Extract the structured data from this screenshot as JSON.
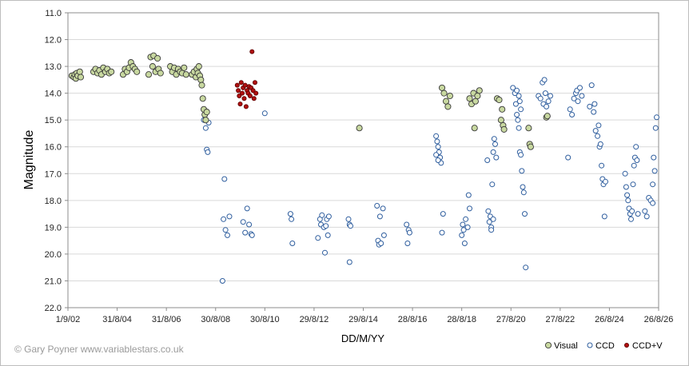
{
  "chart_data": {
    "type": "scatter",
    "title": "",
    "xlabel": "DD/M/YY",
    "ylabel": "Magnitude",
    "y_inverted": true,
    "ylim": [
      11.0,
      22.0
    ],
    "yticks": [
      "11.0",
      "12.0",
      "13.0",
      "14.0",
      "15.0",
      "16.0",
      "17.0",
      "18.0",
      "19.0",
      "20.0",
      "21.0",
      "22.0"
    ],
    "xticks": [
      "1/9/02",
      "31/8/04",
      "31/8/06",
      "30/8/08",
      "30/8/10",
      "29/8/12",
      "29/8/14",
      "28/8/16",
      "28/8/18",
      "27/8/20",
      "27/8/22",
      "26/8/24",
      "26/8/26"
    ],
    "grid": "horizontal",
    "legend_position": "bottom-right",
    "credit": "© Gary Poyner  www.variablestars.co.uk",
    "colors": {
      "Visual": "#c8d8a0",
      "CCD": "#ffffff",
      "CCD+V": "#b01010",
      "CCD_edge": "#2f5e9e",
      "Visual_edge": "#3a3a3a"
    },
    "series": [
      {
        "name": "Visual",
        "points": [
          [
            2002.2,
            13.35
          ],
          [
            2002.3,
            13.4
          ],
          [
            2002.35,
            13.3
          ],
          [
            2002.4,
            13.45
          ],
          [
            2002.45,
            13.25
          ],
          [
            2002.5,
            13.35
          ],
          [
            2002.6,
            13.2
          ],
          [
            2002.65,
            13.4
          ],
          [
            2003.3,
            13.2
          ],
          [
            2003.4,
            13.1
          ],
          [
            2003.5,
            13.25
          ],
          [
            2003.6,
            13.15
          ],
          [
            2003.7,
            13.3
          ],
          [
            2003.8,
            13.05
          ],
          [
            2003.9,
            13.2
          ],
          [
            2004.0,
            13.1
          ],
          [
            2004.1,
            13.25
          ],
          [
            2004.2,
            13.2
          ],
          [
            2004.8,
            13.3
          ],
          [
            2004.9,
            13.1
          ],
          [
            2005.0,
            13.2
          ],
          [
            2005.1,
            13.05
          ],
          [
            2005.2,
            12.85
          ],
          [
            2005.3,
            13.0
          ],
          [
            2005.4,
            13.1
          ],
          [
            2005.5,
            13.2
          ],
          [
            2006.1,
            13.3
          ],
          [
            2006.2,
            12.65
          ],
          [
            2006.3,
            13.0
          ],
          [
            2006.35,
            12.6
          ],
          [
            2006.45,
            13.2
          ],
          [
            2006.55,
            12.7
          ],
          [
            2006.6,
            13.1
          ],
          [
            2006.7,
            13.25
          ],
          [
            2007.2,
            13.0
          ],
          [
            2007.3,
            13.2
          ],
          [
            2007.4,
            13.05
          ],
          [
            2007.5,
            13.3
          ],
          [
            2007.6,
            13.1
          ],
          [
            2007.7,
            13.2
          ],
          [
            2007.8,
            13.25
          ],
          [
            2007.9,
            13.05
          ],
          [
            2008.0,
            13.3
          ],
          [
            2008.3,
            13.3
          ],
          [
            2008.4,
            13.2
          ],
          [
            2008.5,
            13.4
          ],
          [
            2008.55,
            13.1
          ],
          [
            2008.6,
            13.25
          ],
          [
            2008.65,
            13.0
          ],
          [
            2008.7,
            13.35
          ],
          [
            2008.75,
            13.5
          ],
          [
            2008.8,
            13.7
          ],
          [
            2008.85,
            14.2
          ],
          [
            2008.9,
            14.6
          ],
          [
            2008.95,
            14.8
          ],
          [
            2009.0,
            15.0
          ],
          [
            2009.05,
            14.7
          ],
          [
            2016.8,
            15.3
          ],
          [
            2021.0,
            13.8
          ],
          [
            2021.1,
            14.0
          ],
          [
            2021.2,
            14.3
          ],
          [
            2021.3,
            14.5
          ],
          [
            2021.4,
            14.1
          ],
          [
            2022.4,
            14.2
          ],
          [
            2022.5,
            14.4
          ],
          [
            2022.6,
            14.0
          ],
          [
            2022.65,
            15.3
          ],
          [
            2022.7,
            14.3
          ],
          [
            2022.8,
            14.1
          ],
          [
            2022.9,
            13.9
          ],
          [
            2023.8,
            14.2
          ],
          [
            2023.9,
            14.25
          ],
          [
            2024.0,
            15.0
          ],
          [
            2024.05,
            14.6
          ],
          [
            2024.1,
            15.2
          ],
          [
            2024.15,
            15.35
          ],
          [
            2025.4,
            15.3
          ],
          [
            2025.45,
            15.9
          ],
          [
            2025.5,
            16.0
          ],
          [
            2026.3,
            14.9
          ],
          [
            2026.35,
            14.85
          ]
        ]
      },
      {
        "name": "CCD",
        "points": [
          [
            2008.9,
            15.0
          ],
          [
            2009.0,
            15.3
          ],
          [
            2009.05,
            16.1
          ],
          [
            2009.1,
            16.2
          ],
          [
            2009.15,
            15.1
          ],
          [
            2009.95,
            17.2
          ],
          [
            2009.9,
            18.7
          ],
          [
            2010.0,
            19.1
          ],
          [
            2010.1,
            19.3
          ],
          [
            2010.2,
            18.6
          ],
          [
            2009.85,
            21.0
          ],
          [
            2010.9,
            18.8
          ],
          [
            2011.0,
            19.2
          ],
          [
            2011.1,
            18.3
          ],
          [
            2011.2,
            18.9
          ],
          [
            2011.3,
            19.25
          ],
          [
            2011.35,
            19.3
          ],
          [
            2012.0,
            14.75
          ],
          [
            2013.3,
            18.5
          ],
          [
            2013.35,
            18.7
          ],
          [
            2013.4,
            19.6
          ],
          [
            2014.7,
            19.4
          ],
          [
            2014.8,
            18.7
          ],
          [
            2014.85,
            18.9
          ],
          [
            2014.9,
            18.55
          ],
          [
            2015.0,
            19.0
          ],
          [
            2015.05,
            19.95
          ],
          [
            2015.1,
            18.95
          ],
          [
            2015.15,
            18.7
          ],
          [
            2015.2,
            19.3
          ],
          [
            2015.25,
            18.6
          ],
          [
            2016.3,
            20.3
          ],
          [
            2016.25,
            18.7
          ],
          [
            2016.3,
            18.9
          ],
          [
            2016.35,
            18.95
          ],
          [
            2017.7,
            18.2
          ],
          [
            2017.75,
            19.5
          ],
          [
            2017.8,
            19.65
          ],
          [
            2017.85,
            18.6
          ],
          [
            2017.9,
            19.6
          ],
          [
            2018.0,
            18.3
          ],
          [
            2018.05,
            19.3
          ],
          [
            2019.2,
            18.9
          ],
          [
            2019.25,
            19.6
          ],
          [
            2019.3,
            19.1
          ],
          [
            2019.35,
            19.2
          ],
          [
            2020.7,
            15.6
          ],
          [
            2020.75,
            15.8
          ],
          [
            2020.8,
            16.0
          ],
          [
            2020.85,
            16.2
          ],
          [
            2020.9,
            16.4
          ],
          [
            2020.95,
            16.6
          ],
          [
            2020.7,
            16.3
          ],
          [
            2020.8,
            16.5
          ],
          [
            2021.0,
            19.2
          ],
          [
            2021.05,
            18.5
          ],
          [
            2022.0,
            19.3
          ],
          [
            2022.05,
            18.9
          ],
          [
            2022.1,
            19.1
          ],
          [
            2022.15,
            19.6
          ],
          [
            2022.2,
            18.7
          ],
          [
            2022.3,
            19.0
          ],
          [
            2022.35,
            17.8
          ],
          [
            2022.4,
            18.3
          ],
          [
            2023.3,
            16.5
          ],
          [
            2023.35,
            18.4
          ],
          [
            2023.4,
            18.8
          ],
          [
            2023.45,
            18.6
          ],
          [
            2023.5,
            19.0
          ],
          [
            2023.55,
            17.4
          ],
          [
            2023.6,
            16.2
          ],
          [
            2023.65,
            15.7
          ],
          [
            2023.7,
            15.9
          ],
          [
            2023.75,
            16.4
          ],
          [
            2023.6,
            18.7
          ],
          [
            2023.5,
            19.1
          ],
          [
            2024.6,
            13.8
          ],
          [
            2024.7,
            14.0
          ],
          [
            2024.75,
            14.4
          ],
          [
            2024.8,
            14.8
          ],
          [
            2024.85,
            15.0
          ],
          [
            2024.9,
            15.3
          ],
          [
            2024.95,
            16.2
          ],
          [
            2025.0,
            16.3
          ],
          [
            2025.05,
            16.9
          ],
          [
            2025.1,
            17.5
          ],
          [
            2025.15,
            17.7
          ],
          [
            2025.2,
            18.5
          ],
          [
            2025.25,
            20.5
          ],
          [
            2024.8,
            13.9
          ],
          [
            2024.9,
            14.1
          ],
          [
            2024.95,
            14.3
          ],
          [
            2025.0,
            14.6
          ],
          [
            2025.9,
            14.1
          ],
          [
            2026.0,
            14.2
          ],
          [
            2026.1,
            13.6
          ],
          [
            2026.15,
            14.4
          ],
          [
            2026.2,
            13.5
          ],
          [
            2026.25,
            14.0
          ],
          [
            2026.3,
            14.5
          ],
          [
            2026.4,
            14.3
          ],
          [
            2026.5,
            14.1
          ],
          [
            2027.4,
            16.4
          ],
          [
            2027.5,
            14.6
          ],
          [
            2027.6,
            14.8
          ],
          [
            2027.7,
            14.2
          ],
          [
            2027.8,
            14.0
          ],
          [
            2027.85,
            13.9
          ],
          [
            2027.9,
            14.3
          ],
          [
            2028.0,
            13.8
          ],
          [
            2028.1,
            14.1
          ],
          [
            2028.5,
            14.5
          ],
          [
            2028.6,
            13.7
          ],
          [
            2028.7,
            14.7
          ],
          [
            2028.75,
            14.4
          ],
          [
            2028.8,
            15.4
          ],
          [
            2028.9,
            15.6
          ],
          [
            2028.95,
            15.2
          ],
          [
            2029.0,
            16.0
          ],
          [
            2029.05,
            15.9
          ],
          [
            2029.1,
            16.7
          ],
          [
            2029.15,
            17.2
          ],
          [
            2029.2,
            17.4
          ],
          [
            2029.25,
            18.6
          ],
          [
            2029.3,
            17.3
          ],
          [
            2030.3,
            17.0
          ],
          [
            2030.35,
            17.5
          ],
          [
            2030.4,
            17.8
          ],
          [
            2030.45,
            18.0
          ],
          [
            2030.5,
            18.3
          ],
          [
            2030.55,
            18.5
          ],
          [
            2030.6,
            18.7
          ],
          [
            2030.65,
            18.4
          ],
          [
            2030.7,
            17.4
          ],
          [
            2030.75,
            16.7
          ],
          [
            2030.8,
            16.4
          ],
          [
            2030.85,
            16.0
          ],
          [
            2030.9,
            16.5
          ],
          [
            2030.95,
            18.5
          ],
          [
            2031.3,
            18.4
          ],
          [
            2031.4,
            18.6
          ],
          [
            2031.5,
            17.9
          ],
          [
            2031.6,
            18.0
          ],
          [
            2031.7,
            18.1
          ],
          [
            2031.75,
            16.4
          ],
          [
            2031.8,
            16.9
          ],
          [
            2031.85,
            15.3
          ],
          [
            2031.9,
            14.9
          ],
          [
            2031.7,
            17.4
          ]
        ]
      },
      {
        "name": "CCD+V",
        "points": [
          [
            2010.6,
            13.7
          ],
          [
            2010.65,
            13.9
          ],
          [
            2010.7,
            14.1
          ],
          [
            2010.75,
            14.4
          ],
          [
            2010.8,
            13.6
          ],
          [
            2010.85,
            14.0
          ],
          [
            2010.9,
            13.8
          ],
          [
            2010.95,
            14.2
          ],
          [
            2011.0,
            13.7
          ],
          [
            2011.05,
            14.5
          ],
          [
            2011.1,
            13.9
          ],
          [
            2011.15,
            14.0
          ],
          [
            2011.2,
            13.75
          ],
          [
            2011.25,
            14.1
          ],
          [
            2011.3,
            13.8
          ],
          [
            2011.35,
            12.45
          ],
          [
            2011.4,
            13.9
          ],
          [
            2011.45,
            14.2
          ],
          [
            2011.5,
            13.6
          ],
          [
            2011.55,
            14.0
          ]
        ]
      }
    ]
  }
}
